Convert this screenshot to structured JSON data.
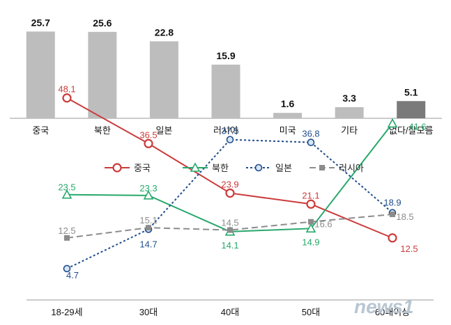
{
  "chart_data": [
    {
      "type": "bar",
      "categories": [
        "중국",
        "북한",
        "일본",
        "러시아",
        "미국",
        "기타",
        "없다/잘모름"
      ],
      "values": [
        25.7,
        25.6,
        22.8,
        15.9,
        1.6,
        3.3,
        5.1
      ],
      "value_labels": [
        "25.7",
        "25.6",
        "22.8",
        "15.9",
        "1.6",
        "3.3",
        "5.1"
      ],
      "colors": [
        "#bdbdbd",
        "#bdbdbd",
        "#bdbdbd",
        "#bdbdbd",
        "#bdbdbd",
        "#bdbdbd",
        "#7a7a7a"
      ],
      "ylim": [
        0,
        27
      ],
      "grid": false
    },
    {
      "type": "line",
      "categories": [
        "18-29세",
        "30대",
        "40대",
        "50대",
        "60대이상"
      ],
      "ylim": [
        0,
        55
      ],
      "legend_position": "top",
      "grid": false,
      "series": [
        {
          "name": "중국",
          "values": [
            48.1,
            36.5,
            23.9,
            21.1,
            12.5
          ],
          "labels": [
            "48.1",
            "36.5",
            "23.9",
            "21.1",
            "12.5"
          ],
          "color": "#cc3b3b",
          "marker": "circle",
          "dash": "solid"
        },
        {
          "name": "북한",
          "values": [
            23.5,
            23.3,
            14.1,
            14.9,
            41.6
          ],
          "labels": [
            "23.5",
            "23.3",
            "14.1",
            "14.9",
            "41.6"
          ],
          "color": "#27a86b",
          "marker": "triangle",
          "dash": "solid"
        },
        {
          "name": "일본",
          "values": [
            4.7,
            14.7,
            37.5,
            36.8,
            18.9
          ],
          "labels": [
            "4.7",
            "14.7",
            "37.5",
            "36.8",
            "18.9"
          ],
          "color": "#1f4e8c",
          "marker": "circle-open",
          "dash": "dotted"
        },
        {
          "name": "러시아",
          "values": [
            12.5,
            15.1,
            14.5,
            16.6,
            18.5
          ],
          "labels": [
            "12.5",
            "15.1",
            "14.5",
            "16.6",
            "18.5"
          ],
          "color": "#8c8c8c",
          "marker": "square",
          "dash": "dashed"
        }
      ]
    }
  ],
  "watermark": "news1"
}
